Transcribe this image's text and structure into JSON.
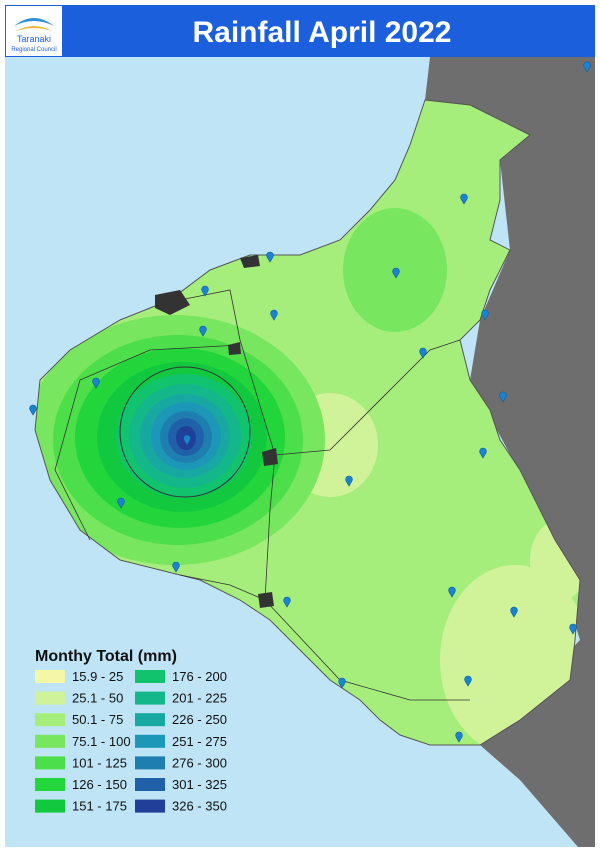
{
  "header": {
    "title": "Rainfall April 2022",
    "logo": {
      "line1": "Taranaki",
      "line2": "Regional Council"
    }
  },
  "legend": {
    "title": "Monthy Total (mm)",
    "items": [
      {
        "label": "15.9 - 25",
        "color": "#f4f7a6"
      },
      {
        "label": "25.1 - 50",
        "color": "#d0f39a"
      },
      {
        "label": "50.1 - 75",
        "color": "#a6ee7c"
      },
      {
        "label": "75.1 - 100",
        "color": "#78e65e"
      },
      {
        "label": "101 - 125",
        "color": "#4cdf4a"
      },
      {
        "label": "126 - 150",
        "color": "#22d53a"
      },
      {
        "label": "151 - 175",
        "color": "#12c83e"
      },
      {
        "label": "176 - 200",
        "color": "#10c36c"
      },
      {
        "label": "201 - 225",
        "color": "#14b78a"
      },
      {
        "label": "226 - 250",
        "color": "#18a8a2"
      },
      {
        "label": "251 - 275",
        "color": "#1d97b8"
      },
      {
        "label": "276 - 300",
        "color": "#1f7eb0"
      },
      {
        "label": "301 - 325",
        "color": "#2060a8"
      },
      {
        "label": "326 - 350",
        "color": "#1f3f98"
      }
    ]
  }
}
